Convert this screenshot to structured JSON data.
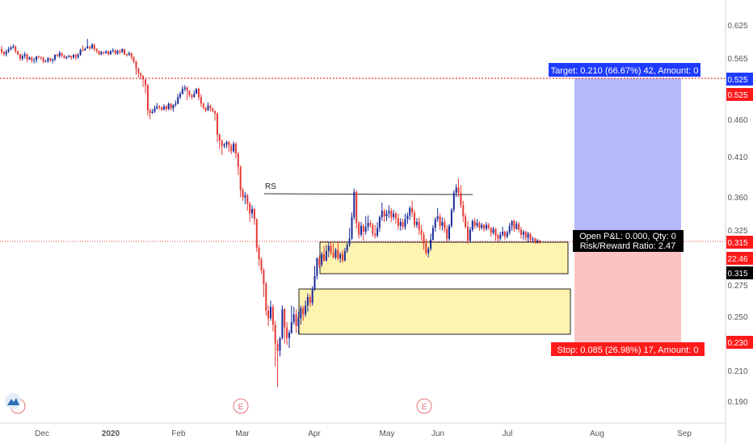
{
  "chart_data": {
    "type": "candlestick",
    "price_axis": {
      "ticks": [
        "0.625",
        "0.565",
        "0.525",
        "0.460",
        "0.410",
        "0.360",
        "0.325",
        "0.275",
        "0.250",
        "0.210",
        "0.190"
      ],
      "tick_values": [
        0.625,
        0.565,
        0.525,
        0.46,
        0.41,
        0.36,
        0.325,
        0.275,
        0.25,
        0.21,
        0.19
      ],
      "scale": "log"
    },
    "time_axis": {
      "ticks": [
        "Dec",
        "2020",
        "Feb",
        "Mar",
        "Apr",
        "May",
        "Jun",
        "Jul",
        "Aug",
        "Sep"
      ]
    },
    "colors": {
      "up": "#1a2a9a",
      "down": "#e53935",
      "target_zone": "#b5b9f8",
      "stop_zone": "#fbc4c4",
      "demand_zone": "#fff3b0",
      "target_label_bg": "#1e3bff",
      "stop_label_bg": "#ff1a1a",
      "price_line": "#e53935"
    },
    "candles": [
      [
        0.575,
        0.57,
        0.581,
        0.566
      ],
      [
        0.57,
        0.566,
        0.572,
        0.563
      ],
      [
        0.566,
        0.571,
        0.574,
        0.562
      ],
      [
        0.571,
        0.575,
        0.579,
        0.568
      ],
      [
        0.575,
        0.578,
        0.581,
        0.573
      ],
      [
        0.578,
        0.58,
        0.584,
        0.576
      ],
      [
        0.58,
        0.571,
        0.582,
        0.568
      ],
      [
        0.571,
        0.566,
        0.573,
        0.564
      ],
      [
        0.566,
        0.558,
        0.567,
        0.554
      ],
      [
        0.558,
        0.563,
        0.566,
        0.555
      ],
      [
        0.563,
        0.566,
        0.57,
        0.558
      ],
      [
        0.566,
        0.557,
        0.567,
        0.552
      ],
      [
        0.557,
        0.56,
        0.562,
        0.556
      ],
      [
        0.56,
        0.555,
        0.562,
        0.551
      ],
      [
        0.555,
        0.556,
        0.56,
        0.55
      ],
      [
        0.556,
        0.562,
        0.563,
        0.551
      ],
      [
        0.562,
        0.561,
        0.564,
        0.558
      ],
      [
        0.561,
        0.559,
        0.562,
        0.556
      ],
      [
        0.559,
        0.553,
        0.562,
        0.55
      ],
      [
        0.553,
        0.554,
        0.556,
        0.552
      ],
      [
        0.554,
        0.559,
        0.561,
        0.551
      ],
      [
        0.559,
        0.555,
        0.56,
        0.552
      ],
      [
        0.555,
        0.557,
        0.559,
        0.55
      ],
      [
        0.557,
        0.565,
        0.566,
        0.554
      ],
      [
        0.565,
        0.563,
        0.567,
        0.561
      ],
      [
        0.563,
        0.568,
        0.572,
        0.559
      ],
      [
        0.568,
        0.564,
        0.569,
        0.56
      ],
      [
        0.564,
        0.559,
        0.565,
        0.558
      ],
      [
        0.559,
        0.561,
        0.563,
        0.557
      ],
      [
        0.561,
        0.563,
        0.565,
        0.56
      ],
      [
        0.563,
        0.56,
        0.564,
        0.556
      ],
      [
        0.56,
        0.565,
        0.566,
        0.558
      ],
      [
        0.565,
        0.561,
        0.567,
        0.556
      ],
      [
        0.561,
        0.565,
        0.568,
        0.558
      ],
      [
        0.565,
        0.574,
        0.576,
        0.563
      ],
      [
        0.574,
        0.573,
        0.582,
        0.571
      ],
      [
        0.573,
        0.576,
        0.578,
        0.572
      ],
      [
        0.576,
        0.58,
        0.594,
        0.578
      ],
      [
        0.58,
        0.577,
        0.581,
        0.573
      ],
      [
        0.577,
        0.583,
        0.586,
        0.575
      ],
      [
        0.583,
        0.575,
        0.585,
        0.571
      ],
      [
        0.575,
        0.572,
        0.577,
        0.568
      ],
      [
        0.572,
        0.566,
        0.573,
        0.564
      ],
      [
        0.566,
        0.57,
        0.572,
        0.564
      ],
      [
        0.57,
        0.568,
        0.571,
        0.565
      ],
      [
        0.568,
        0.571,
        0.573,
        0.567
      ],
      [
        0.571,
        0.566,
        0.572,
        0.564
      ],
      [
        0.566,
        0.571,
        0.574,
        0.565
      ],
      [
        0.571,
        0.573,
        0.577,
        0.569
      ],
      [
        0.573,
        0.567,
        0.575,
        0.565
      ],
      [
        0.567,
        0.572,
        0.574,
        0.565
      ],
      [
        0.572,
        0.57,
        0.575,
        0.566
      ],
      [
        0.57,
        0.575,
        0.577,
        0.568
      ],
      [
        0.575,
        0.566,
        0.576,
        0.564
      ],
      [
        0.566,
        0.565,
        0.568,
        0.562
      ],
      [
        0.565,
        0.568,
        0.571,
        0.563
      ],
      [
        0.568,
        0.561,
        0.569,
        0.556
      ],
      [
        0.561,
        0.553,
        0.562,
        0.55
      ],
      [
        0.553,
        0.541,
        0.555,
        0.531
      ],
      [
        0.541,
        0.533,
        0.543,
        0.526
      ],
      [
        0.533,
        0.529,
        0.535,
        0.523
      ],
      [
        0.529,
        0.523,
        0.53,
        0.511
      ],
      [
        0.523,
        0.514,
        0.524,
        0.501
      ],
      [
        0.514,
        0.475,
        0.516,
        0.467
      ],
      [
        0.475,
        0.471,
        0.478,
        0.462
      ],
      [
        0.471,
        0.473,
        0.477,
        0.47
      ],
      [
        0.473,
        0.478,
        0.482,
        0.471
      ],
      [
        0.478,
        0.481,
        0.486,
        0.476
      ],
      [
        0.481,
        0.479,
        0.483,
        0.476
      ],
      [
        0.479,
        0.476,
        0.481,
        0.474
      ],
      [
        0.476,
        0.481,
        0.484,
        0.475
      ],
      [
        0.481,
        0.477,
        0.483,
        0.473
      ],
      [
        0.477,
        0.485,
        0.487,
        0.475
      ],
      [
        0.485,
        0.478,
        0.486,
        0.475
      ],
      [
        0.478,
        0.483,
        0.484,
        0.473
      ],
      [
        0.483,
        0.485,
        0.49,
        0.48
      ],
      [
        0.485,
        0.495,
        0.5,
        0.484
      ],
      [
        0.495,
        0.5,
        0.504,
        0.492
      ],
      [
        0.5,
        0.508,
        0.513,
        0.499
      ],
      [
        0.508,
        0.51,
        0.514,
        0.504
      ],
      [
        0.51,
        0.505,
        0.512,
        0.49
      ],
      [
        0.505,
        0.498,
        0.506,
        0.495
      ],
      [
        0.498,
        0.495,
        0.5,
        0.492
      ],
      [
        0.495,
        0.5,
        0.506,
        0.494
      ],
      [
        0.5,
        0.508,
        0.509,
        0.5
      ],
      [
        0.508,
        0.495,
        0.51,
        0.49
      ],
      [
        0.495,
        0.485,
        0.5,
        0.48
      ],
      [
        0.485,
        0.479,
        0.487,
        0.476
      ],
      [
        0.479,
        0.475,
        0.48,
        0.472
      ],
      [
        0.475,
        0.482,
        0.487,
        0.474
      ],
      [
        0.482,
        0.478,
        0.484,
        0.473
      ],
      [
        0.478,
        0.474,
        0.479,
        0.472
      ],
      [
        0.474,
        0.47,
        0.475,
        0.46
      ],
      [
        0.47,
        0.44,
        0.472,
        0.43
      ],
      [
        0.44,
        0.432,
        0.442,
        0.421
      ],
      [
        0.432,
        0.425,
        0.434,
        0.413
      ],
      [
        0.425,
        0.427,
        0.429,
        0.422
      ],
      [
        0.427,
        0.43,
        0.432,
        0.422
      ],
      [
        0.43,
        0.425,
        0.432,
        0.417
      ],
      [
        0.425,
        0.418,
        0.428,
        0.414
      ],
      [
        0.418,
        0.428,
        0.431,
        0.416
      ],
      [
        0.428,
        0.415,
        0.43,
        0.409
      ],
      [
        0.415,
        0.398,
        0.417,
        0.388
      ],
      [
        0.398,
        0.37,
        0.4,
        0.362
      ],
      [
        0.37,
        0.362,
        0.373,
        0.358
      ],
      [
        0.362,
        0.364,
        0.368,
        0.354
      ],
      [
        0.364,
        0.355,
        0.366,
        0.347
      ],
      [
        0.355,
        0.344,
        0.357,
        0.335
      ],
      [
        0.344,
        0.349,
        0.353,
        0.339
      ],
      [
        0.349,
        0.338,
        0.35,
        0.332
      ],
      [
        0.338,
        0.309,
        0.339,
        0.305
      ],
      [
        0.309,
        0.298,
        0.312,
        0.292
      ],
      [
        0.298,
        0.288,
        0.3,
        0.285
      ],
      [
        0.288,
        0.276,
        0.29,
        0.265
      ],
      [
        0.276,
        0.254,
        0.278,
        0.25
      ],
      [
        0.254,
        0.248,
        0.258,
        0.242
      ],
      [
        0.248,
        0.257,
        0.262,
        0.246
      ],
      [
        0.257,
        0.243,
        0.259,
        0.238
      ],
      [
        0.243,
        0.229,
        0.246,
        0.213
      ],
      [
        0.229,
        0.224,
        0.232,
        0.2
      ],
      [
        0.224,
        0.233,
        0.234,
        0.22
      ],
      [
        0.233,
        0.255,
        0.258,
        0.232
      ],
      [
        0.255,
        0.241,
        0.256,
        0.229
      ],
      [
        0.241,
        0.233,
        0.245,
        0.228
      ],
      [
        0.233,
        0.237,
        0.239,
        0.226
      ],
      [
        0.237,
        0.245,
        0.258,
        0.236
      ],
      [
        0.245,
        0.251,
        0.257,
        0.243
      ],
      [
        0.251,
        0.242,
        0.255,
        0.237
      ],
      [
        0.242,
        0.248,
        0.253,
        0.236
      ],
      [
        0.248,
        0.256,
        0.258,
        0.243
      ],
      [
        0.256,
        0.251,
        0.258,
        0.246
      ],
      [
        0.251,
        0.258,
        0.262,
        0.249
      ],
      [
        0.258,
        0.265,
        0.268,
        0.253
      ],
      [
        0.265,
        0.26,
        0.267,
        0.257
      ],
      [
        0.26,
        0.272,
        0.274,
        0.258
      ],
      [
        0.272,
        0.283,
        0.292,
        0.27
      ],
      [
        0.283,
        0.299,
        0.3,
        0.28
      ],
      [
        0.299,
        0.293,
        0.302,
        0.29
      ],
      [
        0.293,
        0.303,
        0.305,
        0.291
      ],
      [
        0.303,
        0.297,
        0.311,
        0.296
      ],
      [
        0.297,
        0.306,
        0.312,
        0.296
      ],
      [
        0.306,
        0.311,
        0.315,
        0.3
      ],
      [
        0.311,
        0.304,
        0.315,
        0.302
      ],
      [
        0.304,
        0.3,
        0.313,
        0.299
      ],
      [
        0.3,
        0.307,
        0.309,
        0.298
      ],
      [
        0.307,
        0.299,
        0.315,
        0.297
      ],
      [
        0.299,
        0.303,
        0.305,
        0.295
      ],
      [
        0.303,
        0.297,
        0.307,
        0.295
      ],
      [
        0.297,
        0.306,
        0.309,
        0.296
      ],
      [
        0.306,
        0.312,
        0.314,
        0.304
      ],
      [
        0.312,
        0.318,
        0.329,
        0.31
      ],
      [
        0.318,
        0.34,
        0.345,
        0.317
      ],
      [
        0.34,
        0.368,
        0.372,
        0.337
      ],
      [
        0.368,
        0.334,
        0.37,
        0.328
      ],
      [
        0.334,
        0.322,
        0.336,
        0.318
      ],
      [
        0.322,
        0.331,
        0.335,
        0.32
      ],
      [
        0.331,
        0.325,
        0.333,
        0.316
      ],
      [
        0.325,
        0.33,
        0.341,
        0.322
      ],
      [
        0.33,
        0.334,
        0.342,
        0.326
      ],
      [
        0.334,
        0.332,
        0.337,
        0.329
      ],
      [
        0.332,
        0.323,
        0.334,
        0.32
      ],
      [
        0.323,
        0.321,
        0.332,
        0.318
      ],
      [
        0.321,
        0.329,
        0.335,
        0.319
      ],
      [
        0.329,
        0.34,
        0.342,
        0.325
      ],
      [
        0.34,
        0.347,
        0.356,
        0.336
      ],
      [
        0.347,
        0.341,
        0.349,
        0.335
      ],
      [
        0.341,
        0.344,
        0.348,
        0.336
      ],
      [
        0.344,
        0.347,
        0.353,
        0.339
      ],
      [
        0.347,
        0.34,
        0.35,
        0.335
      ],
      [
        0.34,
        0.344,
        0.348,
        0.337
      ],
      [
        0.344,
        0.339,
        0.346,
        0.333
      ],
      [
        0.339,
        0.331,
        0.344,
        0.327
      ],
      [
        0.331,
        0.335,
        0.339,
        0.326
      ],
      [
        0.335,
        0.33,
        0.338,
        0.327
      ],
      [
        0.33,
        0.338,
        0.344,
        0.327
      ],
      [
        0.338,
        0.342,
        0.345,
        0.333
      ],
      [
        0.342,
        0.35,
        0.352,
        0.337
      ],
      [
        0.35,
        0.345,
        0.358,
        0.34
      ],
      [
        0.345,
        0.332,
        0.348,
        0.329
      ],
      [
        0.332,
        0.335,
        0.339,
        0.329
      ],
      [
        0.335,
        0.327,
        0.34,
        0.322
      ],
      [
        0.327,
        0.322,
        0.332,
        0.316
      ],
      [
        0.322,
        0.313,
        0.325,
        0.307
      ],
      [
        0.313,
        0.304,
        0.318,
        0.302
      ],
      [
        0.304,
        0.308,
        0.31,
        0.3
      ],
      [
        0.308,
        0.317,
        0.323,
        0.306
      ],
      [
        0.317,
        0.329,
        0.332,
        0.316
      ],
      [
        0.329,
        0.338,
        0.34,
        0.325
      ],
      [
        0.338,
        0.341,
        0.35,
        0.335
      ],
      [
        0.341,
        0.331,
        0.344,
        0.327
      ],
      [
        0.331,
        0.335,
        0.34,
        0.326
      ],
      [
        0.335,
        0.328,
        0.339,
        0.324
      ],
      [
        0.328,
        0.318,
        0.332,
        0.315
      ],
      [
        0.318,
        0.331,
        0.333,
        0.316
      ],
      [
        0.331,
        0.348,
        0.35,
        0.329
      ],
      [
        0.348,
        0.367,
        0.37,
        0.345
      ],
      [
        0.367,
        0.373,
        0.377,
        0.362
      ],
      [
        0.373,
        0.367,
        0.384,
        0.362
      ],
      [
        0.367,
        0.353,
        0.376,
        0.35
      ],
      [
        0.353,
        0.341,
        0.358,
        0.335
      ],
      [
        0.341,
        0.33,
        0.344,
        0.328
      ],
      [
        0.33,
        0.316,
        0.336,
        0.313
      ],
      [
        0.316,
        0.327,
        0.33,
        0.314
      ],
      [
        0.327,
        0.336,
        0.338,
        0.325
      ],
      [
        0.336,
        0.331,
        0.339,
        0.328
      ],
      [
        0.331,
        0.334,
        0.338,
        0.329
      ],
      [
        0.334,
        0.329,
        0.336,
        0.326
      ],
      [
        0.329,
        0.332,
        0.334,
        0.327
      ],
      [
        0.332,
        0.328,
        0.333,
        0.325
      ],
      [
        0.328,
        0.332,
        0.335,
        0.326
      ],
      [
        0.332,
        0.329,
        0.334,
        0.327
      ],
      [
        0.329,
        0.324,
        0.33,
        0.32
      ],
      [
        0.324,
        0.328,
        0.33,
        0.322
      ],
      [
        0.328,
        0.321,
        0.329,
        0.316
      ],
      [
        0.321,
        0.318,
        0.323,
        0.315
      ],
      [
        0.318,
        0.322,
        0.325,
        0.316
      ],
      [
        0.322,
        0.325,
        0.33,
        0.32
      ],
      [
        0.325,
        0.32,
        0.326,
        0.317
      ],
      [
        0.32,
        0.324,
        0.326,
        0.318
      ],
      [
        0.324,
        0.331,
        0.334,
        0.322
      ],
      [
        0.331,
        0.336,
        0.337,
        0.326
      ],
      [
        0.336,
        0.328,
        0.338,
        0.325
      ],
      [
        0.328,
        0.333,
        0.336,
        0.327
      ],
      [
        0.333,
        0.327,
        0.335,
        0.324
      ],
      [
        0.327,
        0.322,
        0.33,
        0.318
      ],
      [
        0.322,
        0.325,
        0.327,
        0.317
      ],
      [
        0.325,
        0.319,
        0.326,
        0.316
      ],
      [
        0.319,
        0.323,
        0.325,
        0.315
      ],
      [
        0.323,
        0.317,
        0.324,
        0.314
      ],
      [
        0.317,
        0.318,
        0.32,
        0.314
      ],
      [
        0.318,
        0.315,
        0.319,
        0.313
      ],
      [
        0.315,
        0.316,
        0.318,
        0.313
      ],
      [
        0.316,
        0.315,
        0.317,
        0.313
      ]
    ],
    "annotations": {
      "rs_label": "RS",
      "resistance_level": 0.364,
      "target_label": "Target: 0.210 (66.67%) 42, Amount: 0",
      "stop_label": "Stop: 0.085 (26.98%) 17, Amount: 0",
      "open_pl": "Open P&L: 0.000, Qty: 0",
      "risk_reward": "Risk/Reward Ratio: 2.47",
      "target_price": 0.525,
      "entry_price": 0.315,
      "stop_price": 0.23,
      "demand_zone_upper": [
        0.315,
        0.285
      ],
      "demand_zone_lower": [
        0.27,
        0.237
      ],
      "event_marker": "E"
    },
    "price_labels": {
      "target": "0.525",
      "target_dotted": "0.525",
      "last": "0.315",
      "countdown": "22:46",
      "entry": "0.315",
      "stop": "0.230"
    }
  }
}
